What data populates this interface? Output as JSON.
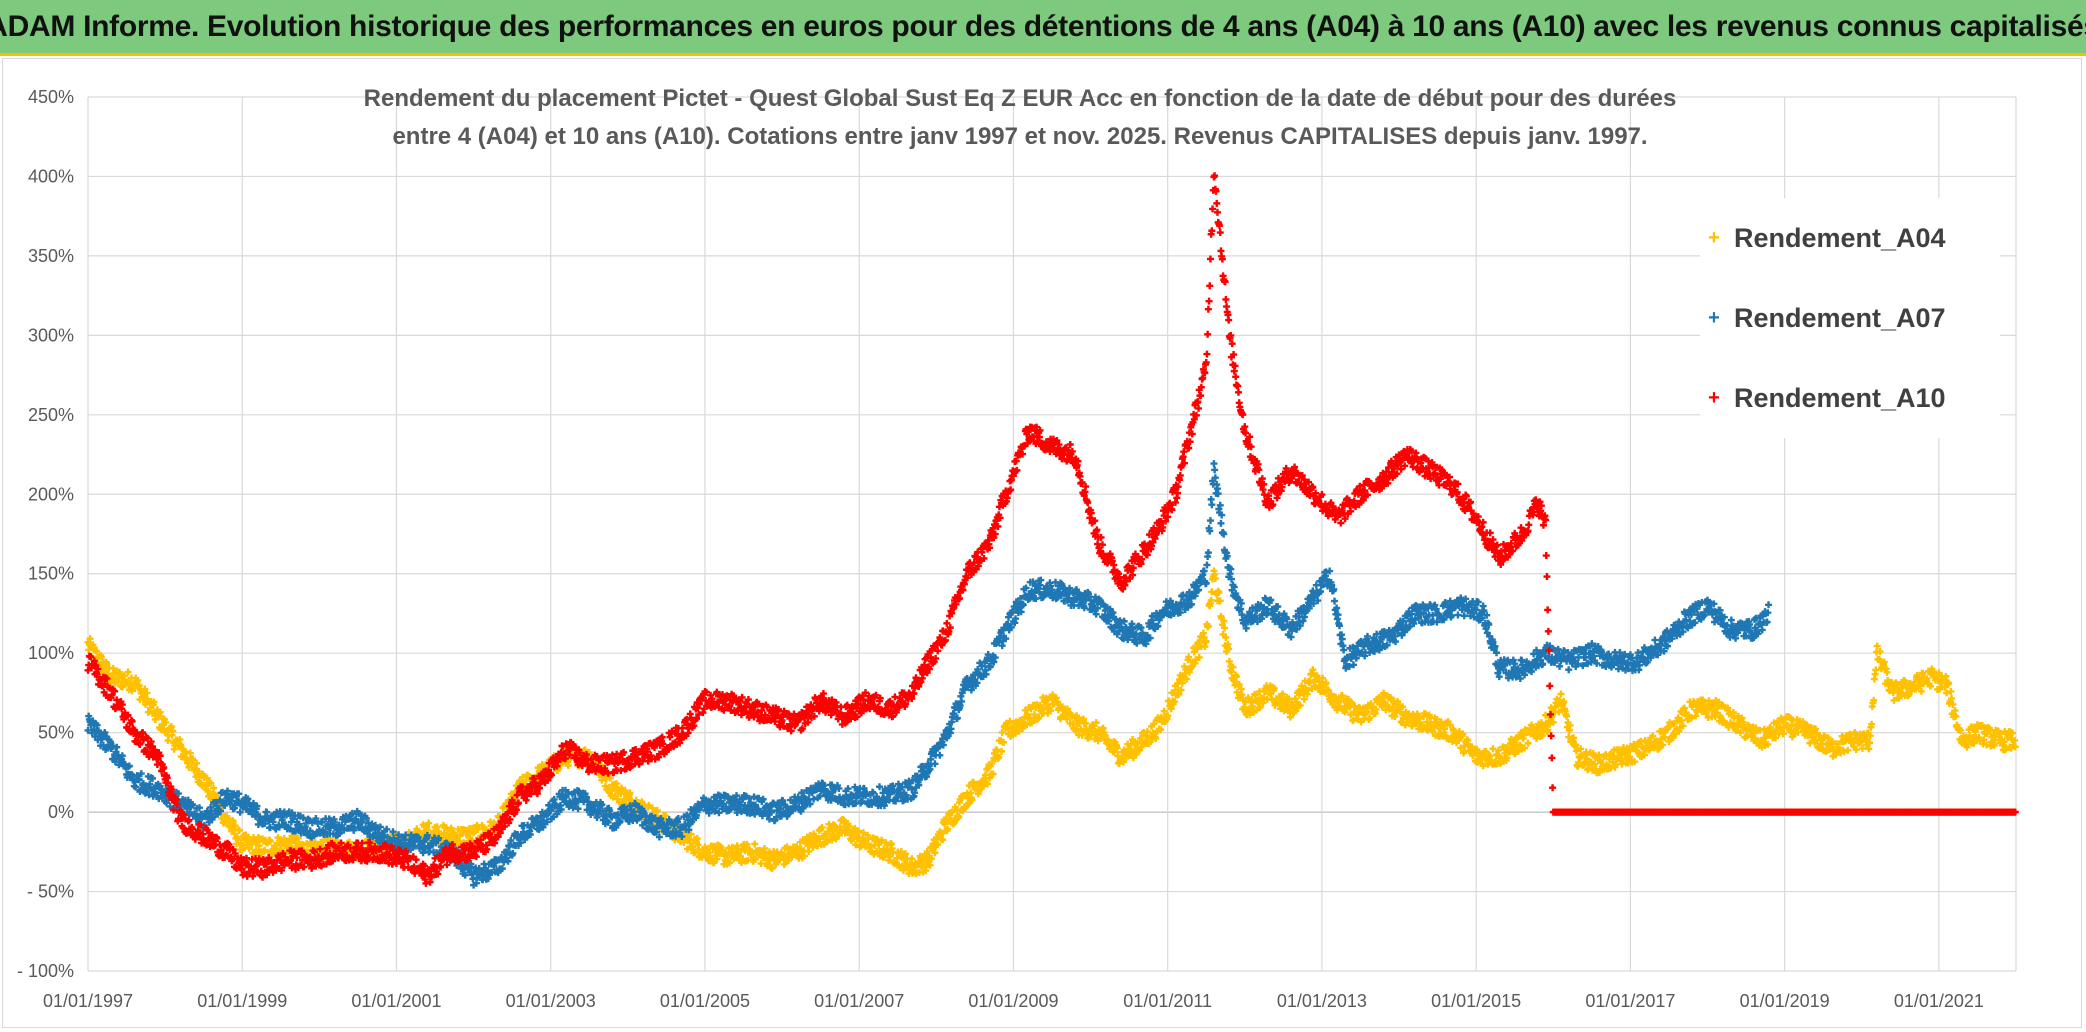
{
  "banner": {
    "text": "ADAM Informe. Evolution historique des performances en euros pour des détentions de 4 ans (A04) à 10 ans (A10) avec les revenus connus capitalisés"
  },
  "colors": {
    "banner_bg": "#7dc97d",
    "banner_border": "#f2c200"
  },
  "chart_data": {
    "type": "scatter",
    "title_line1": "Rendement du placement Pictet - Quest Global Sust Eq Z EUR Acc en fonction de la date de début pour des durées",
    "title_line2": "entre 4 (A04) et 10 ans (A10). Cotations entre janv 1997 et nov. 2025. Revenus CAPITALISES depuis janv. 1997.",
    "x_ticks": [
      "01/01/1997",
      "01/01/1999",
      "01/01/2001",
      "01/01/2003",
      "01/01/2005",
      "01/01/2007",
      "01/01/2009",
      "01/01/2011",
      "01/01/2013",
      "01/01/2015",
      "01/01/2017",
      "01/01/2019",
      "01/01/2021"
    ],
    "y_ticks": [
      "- 100%",
      "- 50%",
      "0%",
      "50%",
      "100%",
      "150%",
      "200%",
      "250%",
      "300%",
      "350%",
      "400%",
      "450%"
    ],
    "ylim": [
      -100,
      450
    ],
    "xlim": [
      1997.0,
      2022.0
    ],
    "grid": true,
    "legend_position": "top-right",
    "series": [
      {
        "name": "Rendement_A04",
        "color": "#ffc000",
        "points": [
          [
            1997.0,
            105
          ],
          [
            1997.3,
            85
          ],
          [
            1997.6,
            82
          ],
          [
            1997.9,
            60
          ],
          [
            1998.2,
            40
          ],
          [
            1998.5,
            20
          ],
          [
            1998.8,
            -5
          ],
          [
            1999.0,
            -20
          ],
          [
            1999.3,
            -22
          ],
          [
            1999.6,
            -20
          ],
          [
            1999.9,
            -25
          ],
          [
            2000.2,
            -22
          ],
          [
            2000.5,
            -25
          ],
          [
            2000.8,
            -20
          ],
          [
            2001.1,
            -20
          ],
          [
            2001.4,
            -12
          ],
          [
            2001.7,
            -15
          ],
          [
            2002.0,
            -15
          ],
          [
            2002.3,
            -10
          ],
          [
            2002.6,
            15
          ],
          [
            2002.9,
            25
          ],
          [
            2003.2,
            35
          ],
          [
            2003.5,
            35
          ],
          [
            2003.8,
            15
          ],
          [
            2004.1,
            5
          ],
          [
            2004.4,
            -5
          ],
          [
            2004.7,
            -15
          ],
          [
            2005.0,
            -25
          ],
          [
            2005.3,
            -28
          ],
          [
            2005.6,
            -25
          ],
          [
            2005.9,
            -30
          ],
          [
            2006.2,
            -25
          ],
          [
            2006.5,
            -15
          ],
          [
            2006.8,
            -10
          ],
          [
            2007.1,
            -20
          ],
          [
            2007.4,
            -25
          ],
          [
            2007.7,
            -35
          ],
          [
            2007.9,
            -30
          ],
          [
            2008.1,
            -10
          ],
          [
            2008.4,
            10
          ],
          [
            2008.7,
            25
          ],
          [
            2008.9,
            50
          ],
          [
            2009.2,
            60
          ],
          [
            2009.5,
            70
          ],
          [
            2009.8,
            55
          ],
          [
            2010.1,
            50
          ],
          [
            2010.4,
            35
          ],
          [
            2010.7,
            45
          ],
          [
            2010.9,
            55
          ],
          [
            2011.1,
            75
          ],
          [
            2011.3,
            95
          ],
          [
            2011.5,
            110
          ],
          [
            2011.6,
            150
          ],
          [
            2011.8,
            95
          ],
          [
            2012.0,
            65
          ],
          [
            2012.3,
            75
          ],
          [
            2012.6,
            65
          ],
          [
            2012.9,
            85
          ],
          [
            2013.2,
            70
          ],
          [
            2013.5,
            60
          ],
          [
            2013.8,
            70
          ],
          [
            2014.1,
            60
          ],
          [
            2014.4,
            55
          ],
          [
            2014.7,
            50
          ],
          [
            2015.0,
            35
          ],
          [
            2015.3,
            35
          ],
          [
            2015.6,
            45
          ],
          [
            2015.9,
            55
          ],
          [
            2016.1,
            70
          ],
          [
            2016.3,
            35
          ],
          [
            2016.6,
            30
          ],
          [
            2016.9,
            35
          ],
          [
            2017.2,
            40
          ],
          [
            2017.5,
            50
          ],
          [
            2017.8,
            65
          ],
          [
            2018.1,
            65
          ],
          [
            2018.4,
            55
          ],
          [
            2018.7,
            45
          ],
          [
            2019.0,
            55
          ],
          [
            2019.3,
            50
          ],
          [
            2019.6,
            40
          ],
          [
            2019.9,
            45
          ],
          [
            2020.1,
            45
          ],
          [
            2020.2,
            100
          ],
          [
            2020.4,
            75
          ],
          [
            2020.7,
            80
          ],
          [
            2020.9,
            85
          ],
          [
            2021.1,
            80
          ],
          [
            2021.3,
            45
          ],
          [
            2021.5,
            50
          ],
          [
            2021.8,
            45
          ],
          [
            2022.0,
            45
          ]
        ]
      },
      {
        "name": "Rendement_A07",
        "color": "#1f77b4",
        "points": [
          [
            1997.0,
            55
          ],
          [
            1997.3,
            40
          ],
          [
            1997.6,
            20
          ],
          [
            1997.9,
            15
          ],
          [
            1998.2,
            5
          ],
          [
            1998.5,
            -5
          ],
          [
            1998.8,
            10
          ],
          [
            1999.0,
            5
          ],
          [
            1999.3,
            -5
          ],
          [
            1999.6,
            -5
          ],
          [
            1999.9,
            -10
          ],
          [
            2000.2,
            -10
          ],
          [
            2000.5,
            -5
          ],
          [
            2000.8,
            -15
          ],
          [
            2001.1,
            -20
          ],
          [
            2001.4,
            -20
          ],
          [
            2001.7,
            -25
          ],
          [
            2002.0,
            -40
          ],
          [
            2002.3,
            -35
          ],
          [
            2002.6,
            -15
          ],
          [
            2002.9,
            -5
          ],
          [
            2003.2,
            10
          ],
          [
            2003.5,
            5
          ],
          [
            2003.8,
            -5
          ],
          [
            2004.1,
            0
          ],
          [
            2004.4,
            -10
          ],
          [
            2004.7,
            -10
          ],
          [
            2005.0,
            5
          ],
          [
            2005.3,
            5
          ],
          [
            2005.6,
            5
          ],
          [
            2005.9,
            0
          ],
          [
            2006.2,
            5
          ],
          [
            2006.5,
            15
          ],
          [
            2006.8,
            10
          ],
          [
            2007.1,
            10
          ],
          [
            2007.4,
            10
          ],
          [
            2007.7,
            15
          ],
          [
            2007.9,
            30
          ],
          [
            2008.1,
            45
          ],
          [
            2008.4,
            80
          ],
          [
            2008.7,
            95
          ],
          [
            2008.9,
            115
          ],
          [
            2009.2,
            140
          ],
          [
            2009.5,
            140
          ],
          [
            2009.8,
            135
          ],
          [
            2010.1,
            130
          ],
          [
            2010.4,
            115
          ],
          [
            2010.7,
            110
          ],
          [
            2010.9,
            125
          ],
          [
            2011.1,
            130
          ],
          [
            2011.3,
            135
          ],
          [
            2011.5,
            150
          ],
          [
            2011.6,
            215
          ],
          [
            2011.8,
            150
          ],
          [
            2012.0,
            120
          ],
          [
            2012.3,
            130
          ],
          [
            2012.6,
            115
          ],
          [
            2012.9,
            135
          ],
          [
            2013.1,
            150
          ],
          [
            2013.3,
            95
          ],
          [
            2013.6,
            105
          ],
          [
            2013.9,
            110
          ],
          [
            2014.2,
            125
          ],
          [
            2014.5,
            125
          ],
          [
            2014.8,
            130
          ],
          [
            2015.1,
            125
          ],
          [
            2015.3,
            90
          ],
          [
            2015.6,
            90
          ],
          [
            2015.9,
            100
          ],
          [
            2016.2,
            95
          ],
          [
            2016.5,
            100
          ],
          [
            2016.8,
            95
          ],
          [
            2017.1,
            95
          ],
          [
            2017.4,
            105
          ],
          [
            2017.7,
            120
          ],
          [
            2018.0,
            130
          ],
          [
            2018.3,
            115
          ],
          [
            2018.6,
            115
          ],
          [
            2018.8,
            125
          ]
        ]
      },
      {
        "name": "Rendement_A10",
        "color": "#ff0000",
        "points": [
          [
            1997.0,
            95
          ],
          [
            1997.3,
            75
          ],
          [
            1997.6,
            50
          ],
          [
            1997.9,
            35
          ],
          [
            1998.2,
            -5
          ],
          [
            1998.5,
            -15
          ],
          [
            1998.8,
            -25
          ],
          [
            1999.0,
            -35
          ],
          [
            1999.3,
            -35
          ],
          [
            1999.6,
            -30
          ],
          [
            1999.9,
            -30
          ],
          [
            2000.2,
            -25
          ],
          [
            2000.5,
            -25
          ],
          [
            2000.8,
            -25
          ],
          [
            2001.1,
            -30
          ],
          [
            2001.4,
            -40
          ],
          [
            2001.7,
            -25
          ],
          [
            2002.0,
            -25
          ],
          [
            2002.3,
            -15
          ],
          [
            2002.6,
            10
          ],
          [
            2002.9,
            20
          ],
          [
            2003.2,
            40
          ],
          [
            2003.5,
            30
          ],
          [
            2003.8,
            30
          ],
          [
            2004.1,
            35
          ],
          [
            2004.4,
            40
          ],
          [
            2004.7,
            50
          ],
          [
            2005.0,
            70
          ],
          [
            2005.3,
            70
          ],
          [
            2005.6,
            65
          ],
          [
            2005.9,
            60
          ],
          [
            2006.2,
            55
          ],
          [
            2006.5,
            70
          ],
          [
            2006.8,
            60
          ],
          [
            2007.1,
            70
          ],
          [
            2007.4,
            65
          ],
          [
            2007.7,
            75
          ],
          [
            2007.9,
            95
          ],
          [
            2008.1,
            110
          ],
          [
            2008.4,
            150
          ],
          [
            2008.7,
            170
          ],
          [
            2008.9,
            200
          ],
          [
            2009.2,
            240
          ],
          [
            2009.5,
            230
          ],
          [
            2009.8,
            225
          ],
          [
            2010.1,
            170
          ],
          [
            2010.4,
            145
          ],
          [
            2010.7,
            165
          ],
          [
            2010.9,
            180
          ],
          [
            2011.1,
            200
          ],
          [
            2011.3,
            240
          ],
          [
            2011.5,
            280
          ],
          [
            2011.6,
            405
          ],
          [
            2011.8,
            300
          ],
          [
            2012.0,
            240
          ],
          [
            2012.3,
            195
          ],
          [
            2012.6,
            215
          ],
          [
            2012.9,
            200
          ],
          [
            2013.2,
            185
          ],
          [
            2013.5,
            200
          ],
          [
            2013.8,
            210
          ],
          [
            2014.1,
            225
          ],
          [
            2014.4,
            215
          ],
          [
            2014.7,
            205
          ],
          [
            2015.0,
            185
          ],
          [
            2015.3,
            160
          ],
          [
            2015.6,
            175
          ],
          [
            2015.8,
            195
          ],
          [
            2015.9,
            180
          ],
          [
            2016.0,
            0
          ],
          [
            2016.5,
            0
          ],
          [
            2017.0,
            0
          ],
          [
            2017.5,
            0
          ],
          [
            2018.0,
            0
          ],
          [
            2018.5,
            0
          ],
          [
            2019.0,
            0
          ],
          [
            2019.5,
            0
          ],
          [
            2020.0,
            0
          ],
          [
            2020.5,
            0
          ],
          [
            2021.0,
            0
          ],
          [
            2021.5,
            0
          ],
          [
            2022.0,
            0
          ]
        ]
      }
    ]
  }
}
